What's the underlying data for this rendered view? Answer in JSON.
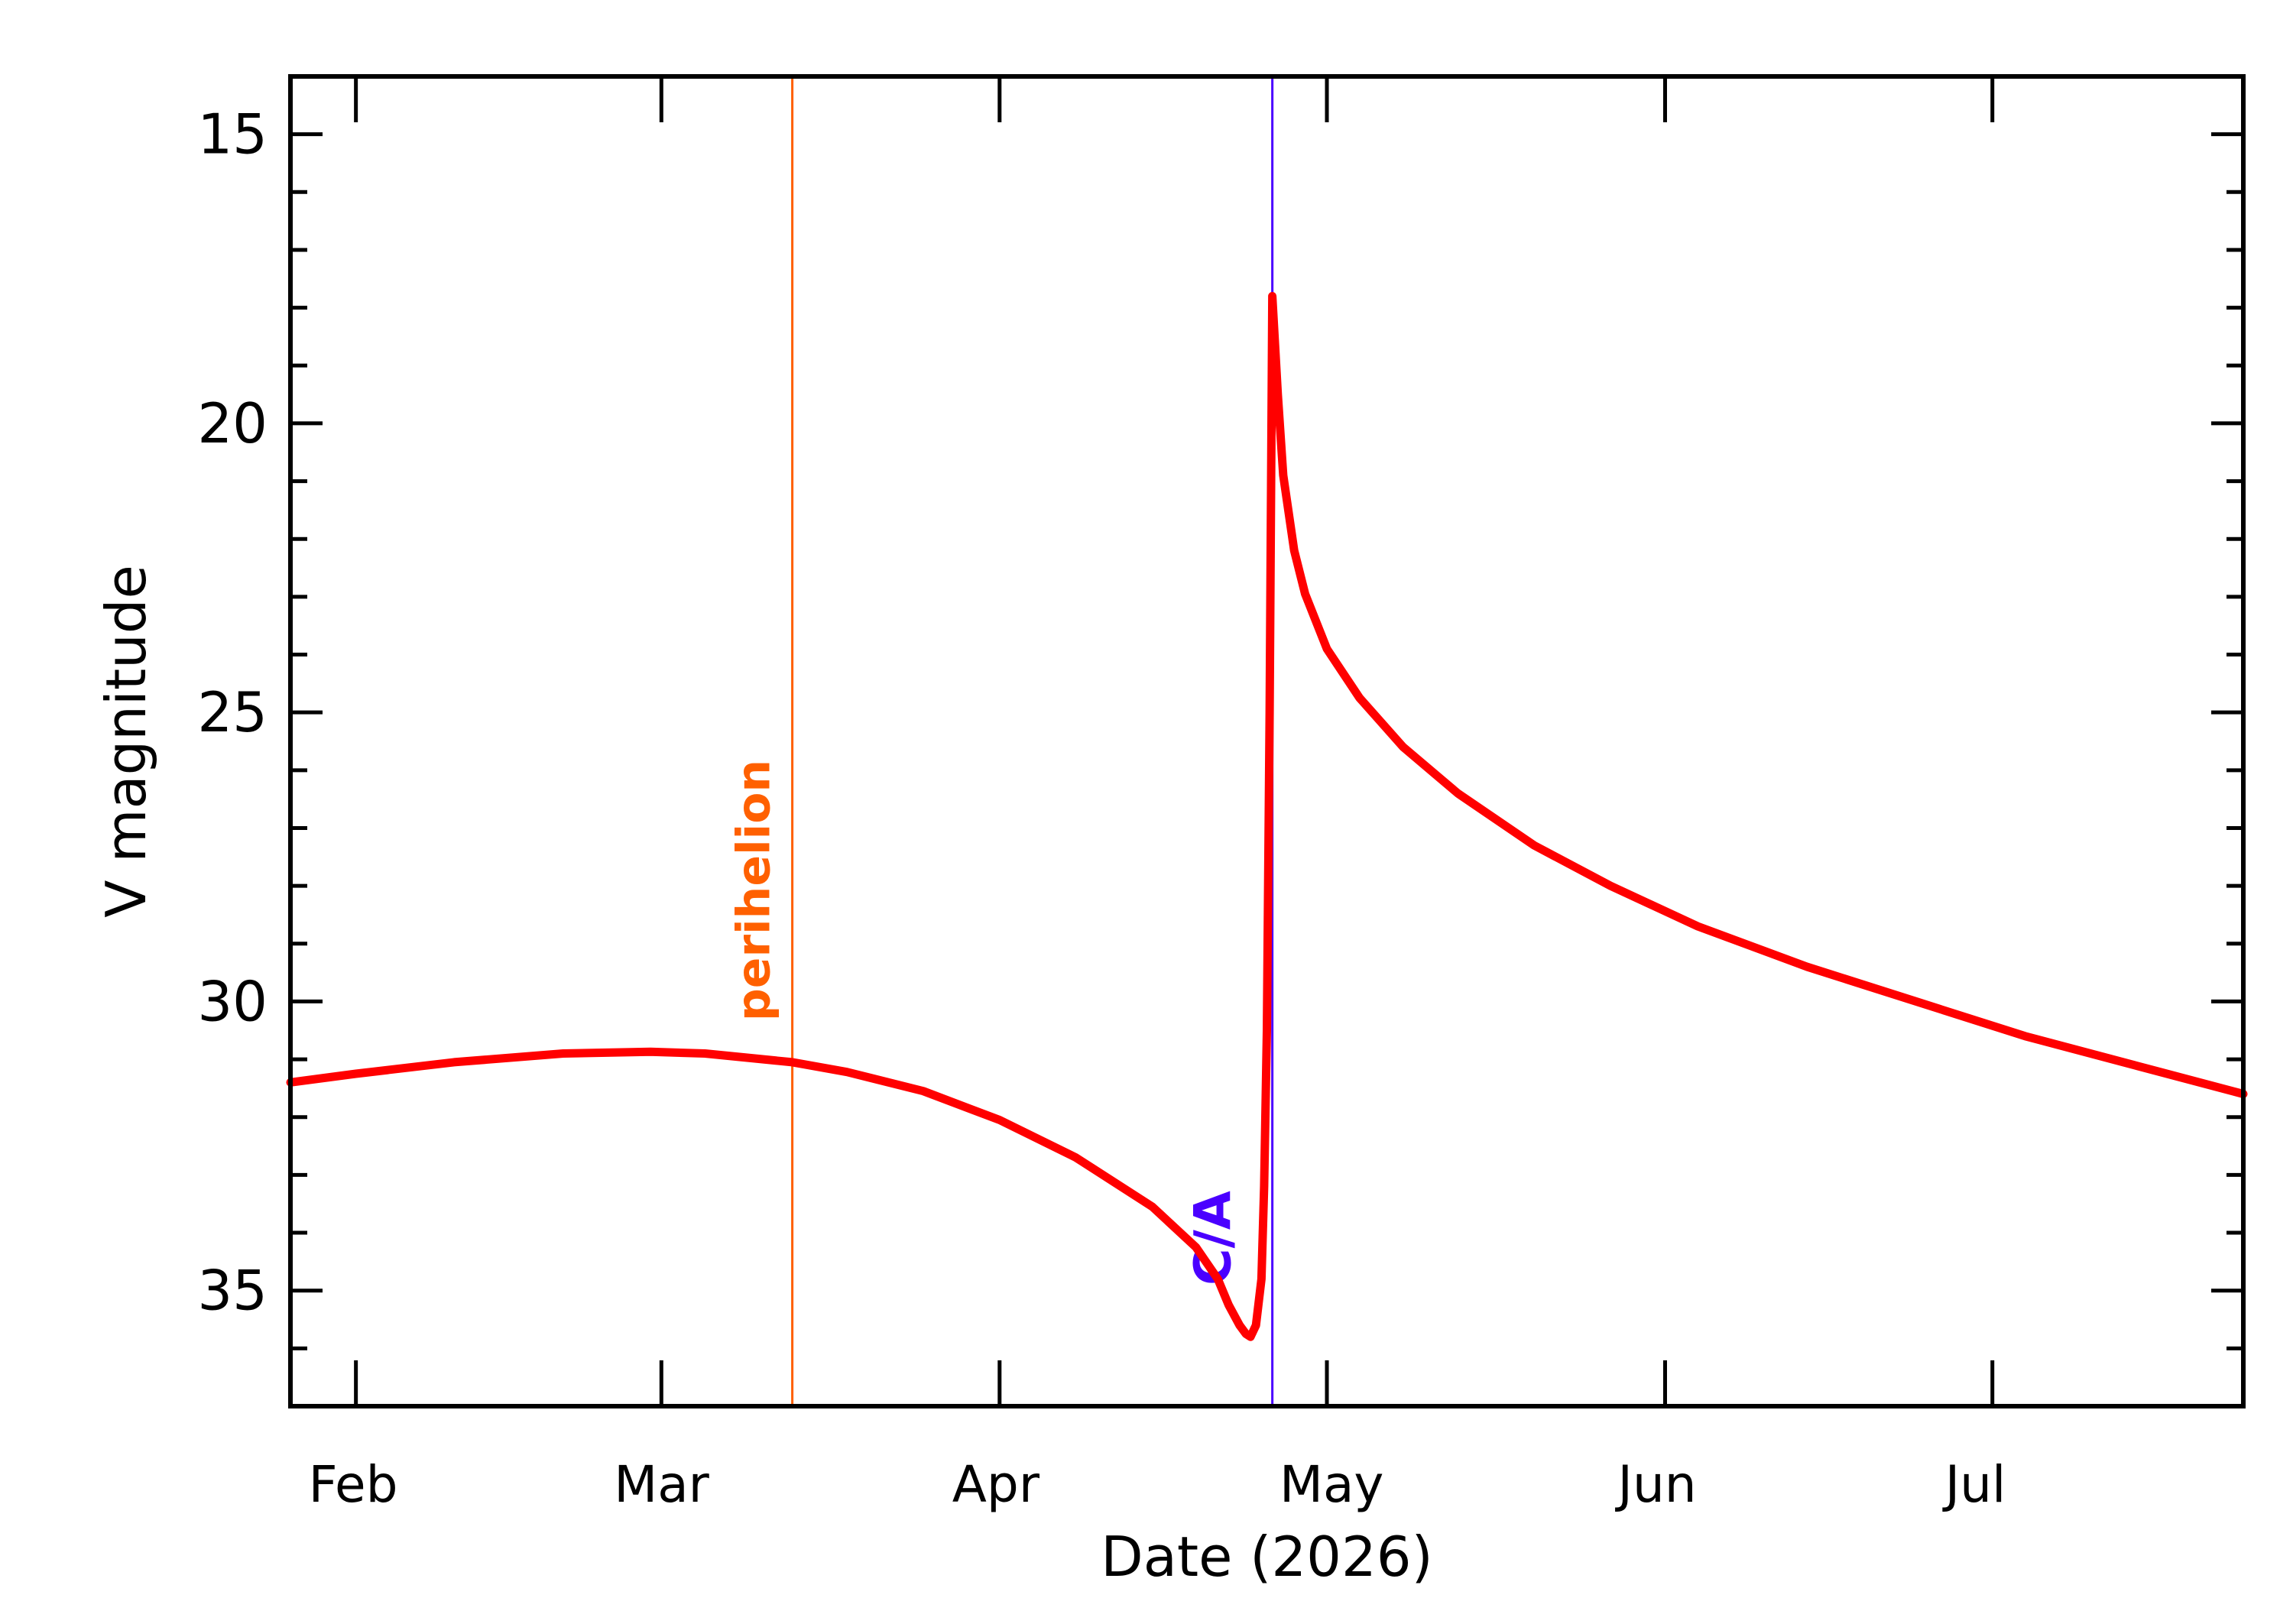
{
  "chart_data": {
    "type": "line",
    "title": "",
    "xlabel": "Date (2026)",
    "ylabel": "V magnitude",
    "x_range": [
      "2026-01-26",
      "2026-07-24"
    ],
    "ylim": [
      37,
      14
    ],
    "y_inverted": true,
    "y_ticks": [
      15,
      20,
      25,
      30,
      35
    ],
    "x_ticks": [
      {
        "date": "2026-02-01",
        "label": "Feb"
      },
      {
        "date": "2026-03-01",
        "label": "Mar"
      },
      {
        "date": "2026-04-01",
        "label": "Apr"
      },
      {
        "date": "2026-05-01",
        "label": "May"
      },
      {
        "date": "2026-06-01",
        "label": "Jun"
      },
      {
        "date": "2026-07-01",
        "label": "Jul"
      }
    ],
    "markers": [
      {
        "label": "perihelion",
        "date": "2026-03-13",
        "color": "#ff6000"
      },
      {
        "label": "C/A",
        "date": "2026-04-26",
        "color": "#4a00ff"
      }
    ],
    "series": [
      {
        "color": "#ff0000",
        "points": [
          [
            "2026-01-26",
            31.4
          ],
          [
            "2026-02-01",
            31.25
          ],
          [
            "2026-02-10",
            31.05
          ],
          [
            "2026-02-20",
            30.9
          ],
          [
            "2026-02-28",
            30.87
          ],
          [
            "2026-03-05",
            30.9
          ],
          [
            "2026-03-13",
            31.05
          ],
          [
            "2026-03-18",
            31.22
          ],
          [
            "2026-03-25",
            31.55
          ],
          [
            "2026-04-01",
            32.05
          ],
          [
            "2026-04-08",
            32.7
          ],
          [
            "2026-04-15",
            33.55
          ],
          [
            "2026-04-19",
            34.25
          ],
          [
            "2026-04-21",
            34.8
          ],
          [
            "2026-04-22",
            35.25
          ],
          [
            "2026-04-23",
            35.6
          ],
          [
            "2026-04-23T14:00",
            35.75
          ],
          [
            "2026-04-24",
            35.8
          ],
          [
            "2026-04-24T12:00",
            35.6
          ],
          [
            "2026-04-25",
            34.8
          ],
          [
            "2026-04-25T06:00",
            33.2
          ],
          [
            "2026-04-25T12:00",
            30.5
          ],
          [
            "2026-04-25T18:00",
            25.0
          ],
          [
            "2026-04-26",
            17.8
          ],
          [
            "2026-04-26T12:00",
            19.5
          ],
          [
            "2026-04-27",
            20.9
          ],
          [
            "2026-04-28",
            22.2
          ],
          [
            "2026-04-29",
            22.95
          ],
          [
            "2026-05-01",
            23.9
          ],
          [
            "2026-05-04",
            24.75
          ],
          [
            "2026-05-08",
            25.6
          ],
          [
            "2026-05-13",
            26.4
          ],
          [
            "2026-05-20",
            27.3
          ],
          [
            "2026-05-27",
            28.0
          ],
          [
            "2026-06-04",
            28.7
          ],
          [
            "2026-06-14",
            29.4
          ],
          [
            "2026-06-24",
            30.0
          ],
          [
            "2026-07-04",
            30.6
          ],
          [
            "2026-07-14",
            31.1
          ],
          [
            "2026-07-24",
            31.6
          ]
        ]
      }
    ]
  }
}
